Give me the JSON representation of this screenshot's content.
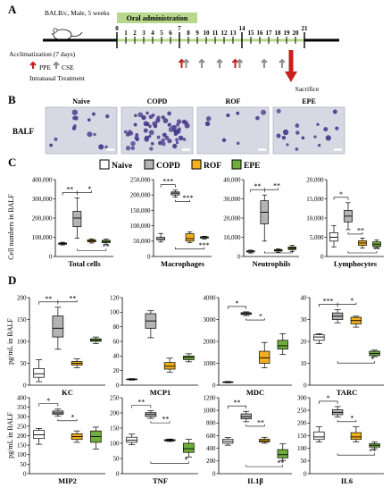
{
  "colors": {
    "naive": "#ffffff",
    "copd": "#b4b4b4",
    "rof": "#f2b01e",
    "epe": "#6fae3a",
    "timeline_oral": "#b8d98c",
    "arrow_red": "#c8201c",
    "arrow_gray": "#8e8e8e",
    "stain_bg": "#d6d8e4",
    "stain_cell": "#4b3c8c"
  },
  "panelA": {
    "label": "A",
    "mouse": "BALB/c, Male, 5 weeks",
    "oral": "Oral administration",
    "acclimatization": "Acclimatization (7 days)",
    "ppe": "PPE",
    "cse": "CSE",
    "intranasal": "Intranasal Treatment",
    "sacrifice": "Sacrifice",
    "days": [
      "0",
      "1",
      "2",
      "3",
      "4",
      "5",
      "6",
      "7",
      "8",
      "9",
      "10",
      "11",
      "12",
      "13",
      "14",
      "15",
      "16",
      "17",
      "18",
      "19",
      "20",
      "21"
    ],
    "major_days": [
      "0",
      "7",
      "14",
      "21"
    ],
    "red_days": [
      7.5,
      13.5
    ],
    "gray_days": [
      7.5,
      9.5,
      11.5,
      13.5,
      16.5,
      18.5
    ],
    "sacrifice_day": 19.5
  },
  "panelB": {
    "label": "B",
    "row_label": "BALF",
    "images": [
      {
        "title": "Naive",
        "density": 14
      },
      {
        "title": "COPD",
        "density": 60
      },
      {
        "title": "ROF",
        "density": 8
      },
      {
        "title": "EPE",
        "density": 16
      }
    ]
  },
  "panelC": {
    "label": "C",
    "ylabel": "Cell numbers in BALF"
  },
  "panelD": {
    "label": "D",
    "ylabel": "pg/mL in BALF"
  },
  "legend": [
    "Naive",
    "COPD",
    "ROF",
    "EPE"
  ],
  "chart_data": [
    {
      "type": "box",
      "title": "Total cells",
      "yticks": [
        "0",
        "100,000",
        "200,000",
        "300,000",
        "400,000"
      ],
      "ylim": [
        0,
        400000
      ],
      "groups": [
        {
          "name": "Naive",
          "min": 60000,
          "q1": 64000,
          "median": 67000,
          "q3": 70000,
          "max": 74000
        },
        {
          "name": "COPD",
          "min": 95000,
          "q1": 155000,
          "median": 200000,
          "q3": 235000,
          "max": 305000
        },
        {
          "name": "ROF",
          "min": 70000,
          "q1": 76000,
          "median": 82000,
          "q3": 87000,
          "max": 92000
        },
        {
          "name": "EPE",
          "min": 64000,
          "q1": 72000,
          "median": 78000,
          "q3": 84000,
          "max": 90000
        }
      ],
      "sig": [
        "**",
        "*",
        "**"
      ]
    },
    {
      "type": "box",
      "title": "Macrophages",
      "yticks": [
        "0",
        "50,000",
        "100,000",
        "150,000",
        "200,000",
        "250,000"
      ],
      "ylim": [
        0,
        250000
      ],
      "groups": [
        {
          "name": "Naive",
          "min": 47000,
          "q1": 54000,
          "median": 58000,
          "q3": 62000,
          "max": 75000
        },
        {
          "name": "COPD",
          "min": 193000,
          "q1": 200000,
          "median": 206000,
          "q3": 210000,
          "max": 216000
        },
        {
          "name": "ROF",
          "min": 45000,
          "q1": 50000,
          "median": 58000,
          "q3": 74000,
          "max": 80000
        },
        {
          "name": "EPE",
          "min": 57000,
          "q1": 60000,
          "median": 63000,
          "q3": 64000,
          "max": 66000
        }
      ],
      "sig": [
        "***",
        "***",
        "***"
      ]
    },
    {
      "type": "box",
      "title": "Neutrophils",
      "yticks": [
        "0",
        "10,000",
        "20,000",
        "30,000",
        "40,000"
      ],
      "ylim": [
        0,
        40000
      ],
      "groups": [
        {
          "name": "Naive",
          "min": 1800,
          "q1": 2300,
          "median": 2700,
          "q3": 3000,
          "max": 3300
        },
        {
          "name": "COPD",
          "min": 8000,
          "q1": 17000,
          "median": 23000,
          "q3": 29000,
          "max": 32000
        },
        {
          "name": "ROF",
          "min": 2200,
          "q1": 2800,
          "median": 3200,
          "q3": 3600,
          "max": 4000
        },
        {
          "name": "EPE",
          "min": 2600,
          "q1": 3600,
          "median": 4200,
          "q3": 5000,
          "max": 5800
        }
      ],
      "sig": [
        "**",
        "**",
        "**"
      ]
    },
    {
      "type": "box",
      "title": "Lymphocytes",
      "yticks": [
        "0",
        "5,000",
        "10,000",
        "15,000",
        "20,000"
      ],
      "ylim": [
        0,
        20000
      ],
      "groups": [
        {
          "name": "Naive",
          "min": 2500,
          "q1": 4000,
          "median": 5000,
          "q3": 6200,
          "max": 8000
        },
        {
          "name": "COPD",
          "min": 7000,
          "q1": 9000,
          "median": 10500,
          "q3": 12000,
          "max": 14000
        },
        {
          "name": "ROF",
          "min": 2200,
          "q1": 2900,
          "median": 3500,
          "q3": 4100,
          "max": 4800
        },
        {
          "name": "EPE",
          "min": 2100,
          "q1": 2600,
          "median": 3200,
          "q3": 3800,
          "max": 4300
        }
      ],
      "sig": [
        "*",
        "**",
        "**"
      ]
    },
    {
      "type": "box",
      "title": "KC",
      "yticks": [
        "0",
        "50",
        "100",
        "150",
        "200"
      ],
      "ylim": [
        0,
        200
      ],
      "groups": [
        {
          "name": "Naive",
          "min": 8,
          "q1": 18,
          "median": 26,
          "q3": 38,
          "max": 58
        },
        {
          "name": "COPD",
          "min": 82,
          "q1": 110,
          "median": 130,
          "q3": 158,
          "max": 178
        },
        {
          "name": "ROF",
          "min": 40,
          "q1": 46,
          "median": 50,
          "q3": 54,
          "max": 60
        },
        {
          "name": "EPE",
          "min": 95,
          "q1": 100,
          "median": 103,
          "q3": 106,
          "max": 110
        }
      ],
      "sig": [
        "**",
        "**"
      ]
    },
    {
      "type": "box",
      "title": "MCP1",
      "yticks": [
        "0",
        "20",
        "40",
        "60",
        "80",
        "100",
        "120"
      ],
      "ylim": [
        0,
        120
      ],
      "groups": [
        {
          "name": "Naive",
          "min": 7,
          "q1": 7.5,
          "median": 8,
          "q3": 8.5,
          "max": 9
        },
        {
          "name": "COPD",
          "min": 65,
          "q1": 78,
          "median": 88,
          "q3": 98,
          "max": 102
        },
        {
          "name": "ROF",
          "min": 18,
          "q1": 22,
          "median": 26,
          "q3": 31,
          "max": 37
        },
        {
          "name": "EPE",
          "min": 32,
          "q1": 35,
          "median": 38,
          "q3": 40,
          "max": 43
        }
      ],
      "sig": []
    },
    {
      "type": "box",
      "title": "MDC",
      "yticks": [
        "0",
        "1000",
        "2000",
        "3000",
        "4000"
      ],
      "ylim": [
        0,
        4000
      ],
      "groups": [
        {
          "name": "Naive",
          "min": 110,
          "q1": 125,
          "median": 140,
          "q3": 155,
          "max": 170
        },
        {
          "name": "COPD",
          "min": 3180,
          "q1": 3230,
          "median": 3270,
          "q3": 3310,
          "max": 3350
        },
        {
          "name": "ROF",
          "min": 800,
          "q1": 1000,
          "median": 1250,
          "q3": 1550,
          "max": 1950
        },
        {
          "name": "EPE",
          "min": 1400,
          "q1": 1650,
          "median": 1800,
          "q3": 2050,
          "max": 2350
        }
      ],
      "sig": [
        "*",
        "*"
      ]
    },
    {
      "type": "box",
      "title": "TARC",
      "yticks": [
        "0",
        "10",
        "20",
        "30",
        "40"
      ],
      "ylim": [
        0,
        40
      ],
      "groups": [
        {
          "name": "Naive",
          "min": 19,
          "q1": 20.5,
          "median": 22,
          "q3": 23,
          "max": 23.5
        },
        {
          "name": "COPD",
          "min": 28.5,
          "q1": 30,
          "median": 31.5,
          "q3": 33,
          "max": 34.5
        },
        {
          "name": "ROF",
          "min": 26.5,
          "q1": 28,
          "median": 29.5,
          "q3": 31,
          "max": 31.5
        },
        {
          "name": "EPE",
          "min": 13,
          "q1": 13.5,
          "median": 14.5,
          "q3": 15.5,
          "max": 16
        }
      ],
      "sig": [
        "***",
        "*",
        "*"
      ]
    },
    {
      "type": "box",
      "title": "MIP2",
      "yticks": [
        "0",
        "50",
        "100",
        "150",
        "200",
        "250",
        "300",
        "350",
        "400"
      ],
      "ylim": [
        0,
        400
      ],
      "groups": [
        {
          "name": "Naive",
          "min": 155,
          "q1": 185,
          "median": 205,
          "q3": 228,
          "max": 238
        },
        {
          "name": "COPD",
          "min": 302,
          "q1": 312,
          "median": 320,
          "q3": 330,
          "max": 340
        },
        {
          "name": "ROF",
          "min": 165,
          "q1": 180,
          "median": 195,
          "q3": 210,
          "max": 225
        },
        {
          "name": "EPE",
          "min": 130,
          "q1": 165,
          "median": 195,
          "q3": 225,
          "max": 245
        }
      ],
      "sig": [
        "*",
        "*"
      ]
    },
    {
      "type": "box",
      "title": "TNF",
      "yticks": [
        "0",
        "50",
        "100",
        "150",
        "200",
        "250"
      ],
      "ylim": [
        0,
        250
      ],
      "groups": [
        {
          "name": "Naive",
          "min": 95,
          "q1": 103,
          "median": 110,
          "q3": 120,
          "max": 130
        },
        {
          "name": "COPD",
          "min": 182,
          "q1": 188,
          "median": 195,
          "q3": 201,
          "max": 207
        },
        {
          "name": "ROF",
          "min": 106,
          "q1": 108,
          "median": 110,
          "q3": 112,
          "max": 114
        },
        {
          "name": "EPE",
          "min": 55,
          "q1": 70,
          "median": 82,
          "q3": 100,
          "max": 113
        }
      ],
      "sig": [
        "**",
        "**",
        "*"
      ]
    },
    {
      "type": "box",
      "title": "IL1β",
      "yticks": [
        "0",
        "200",
        "400",
        "600",
        "800",
        "1000",
        "1200"
      ],
      "ylim": [
        0,
        1200
      ],
      "groups": [
        {
          "name": "Naive",
          "min": 450,
          "q1": 480,
          "median": 510,
          "q3": 545,
          "max": 570
        },
        {
          "name": "COPD",
          "min": 820,
          "q1": 865,
          "median": 900,
          "q3": 945,
          "max": 985
        },
        {
          "name": "ROF",
          "min": 480,
          "q1": 500,
          "median": 520,
          "q3": 545,
          "max": 575
        },
        {
          "name": "EPE",
          "min": 210,
          "q1": 250,
          "median": 300,
          "q3": 380,
          "max": 470
        }
      ],
      "sig": [
        "**",
        "**",
        "**"
      ]
    },
    {
      "type": "box",
      "title": "IL6",
      "yticks": [
        "0",
        "50",
        "100",
        "150",
        "200",
        "250",
        "300"
      ],
      "ylim": [
        0,
        300
      ],
      "groups": [
        {
          "name": "Naive",
          "min": 125,
          "q1": 135,
          "median": 145,
          "q3": 165,
          "max": 185
        },
        {
          "name": "COPD",
          "min": 223,
          "q1": 233,
          "median": 242,
          "q3": 252,
          "max": 265
        },
        {
          "name": "ROF",
          "min": 125,
          "q1": 135,
          "median": 145,
          "q3": 162,
          "max": 185
        },
        {
          "name": "EPE",
          "min": 98,
          "q1": 105,
          "median": 112,
          "q3": 118,
          "max": 125
        }
      ],
      "sig": [
        "*",
        "*",
        "**"
      ]
    }
  ]
}
